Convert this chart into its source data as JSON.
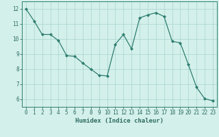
{
  "x": [
    0,
    1,
    2,
    3,
    4,
    5,
    6,
    7,
    8,
    9,
    10,
    11,
    12,
    13,
    14,
    15,
    16,
    17,
    18,
    19,
    20,
    21,
    22,
    23
  ],
  "y": [
    12.0,
    11.2,
    10.3,
    10.3,
    9.9,
    8.9,
    8.85,
    8.4,
    8.0,
    7.6,
    7.55,
    9.65,
    10.3,
    9.35,
    11.4,
    11.6,
    11.75,
    11.5,
    9.85,
    9.75,
    8.3,
    6.8,
    6.05,
    5.9
  ],
  "line_color": "#2d7d6f",
  "marker": "D",
  "marker_size": 2.0,
  "bg_color": "#d4f0eb",
  "grid_color": "#aed8d2",
  "xlabel": "Humidex (Indice chaleur)",
  "xlim": [
    -0.5,
    23.5
  ],
  "ylim": [
    5.5,
    12.5
  ],
  "yticks": [
    6,
    7,
    8,
    9,
    10,
    11,
    12
  ],
  "xticks": [
    0,
    1,
    2,
    3,
    4,
    5,
    6,
    7,
    8,
    9,
    10,
    11,
    12,
    13,
    14,
    15,
    16,
    17,
    18,
    19,
    20,
    21,
    22,
    23
  ],
  "tick_color": "#2d6b62",
  "label_fontsize": 5.5,
  "xlabel_fontsize": 6.5,
  "axis_color": "#2d7d6f",
  "linewidth": 0.9
}
